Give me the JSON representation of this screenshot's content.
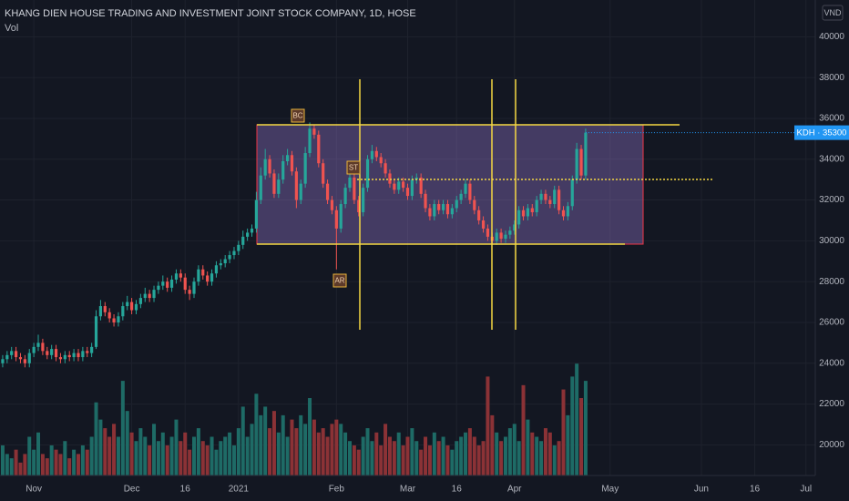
{
  "chart_data": {
    "type": "candlestick",
    "title": "KHANG DIEN HOUSE TRADING AND INVESTMENT JOINT STOCK COMPANY, 1D, HOSE",
    "volume_label": "Vol",
    "currency": "VND",
    "price_label": {
      "value": 35300,
      "label": "KDH · 35300"
    },
    "annotations": [
      {
        "text": "BC"
      },
      {
        "text": "ST"
      },
      {
        "text": "AR"
      }
    ],
    "up_color": "#26a69a",
    "down_color": "#ef5350",
    "volume_up_color": "#1e6b66",
    "volume_down_color": "#8b3236",
    "grid": true,
    "ylim": [
      18500,
      41800
    ],
    "yticks": [
      20000,
      22000,
      24000,
      26000,
      28000,
      30000,
      32000,
      34000,
      36000,
      38000,
      40000
    ],
    "xlim": [
      -0.6,
      182.6
    ],
    "xticks": [
      {
        "value": 7,
        "label": "Nov"
      },
      {
        "value": 29,
        "label": "Dec"
      },
      {
        "value": 41,
        "label": "16"
      },
      {
        "value": 53,
        "label": "2021"
      },
      {
        "value": 75,
        "label": "Feb"
      },
      {
        "value": 91,
        "label": "Mar"
      },
      {
        "value": 102,
        "label": "16"
      },
      {
        "value": 115,
        "label": "Apr"
      },
      {
        "value": 136.5,
        "label": "May"
      },
      {
        "value": 157,
        "label": "Jun"
      },
      {
        "value": 169,
        "label": "16"
      },
      {
        "value": 180.5,
        "label": "Jul"
      }
    ],
    "vlim": [
      0,
      3600000
    ],
    "candles": [
      [
        24000,
        24400,
        23800,
        24200
      ],
      [
        24200,
        24600,
        24000,
        24400
      ],
      [
        24400,
        24800,
        24200,
        24600
      ],
      [
        24600,
        24800,
        24100,
        24300
      ],
      [
        24300,
        24500,
        24000,
        24200
      ],
      [
        24200,
        24400,
        23800,
        24000
      ],
      [
        24000,
        24700,
        23800,
        24500
      ],
      [
        24500,
        25000,
        24300,
        24800
      ],
      [
        24800,
        25400,
        24600,
        25000
      ],
      [
        25000,
        25200,
        24400,
        24600
      ],
      [
        24600,
        24800,
        24200,
        24400
      ],
      [
        24400,
        24900,
        24200,
        24700
      ],
      [
        24700,
        24900,
        24100,
        24300
      ],
      [
        24300,
        24500,
        24000,
        24200
      ],
      [
        24200,
        24600,
        24000,
        24400
      ],
      [
        24400,
        24600,
        24100,
        24300
      ],
      [
        24300,
        24700,
        24100,
        24500
      ],
      [
        24500,
        24700,
        24100,
        24300
      ],
      [
        24300,
        24800,
        24100,
        24600
      ],
      [
        24600,
        24800,
        24300,
        24500
      ],
      [
        24500,
        25000,
        24300,
        24800
      ],
      [
        24800,
        26600,
        24700,
        26300
      ],
      [
        26300,
        27100,
        26100,
        26800
      ],
      [
        26800,
        27000,
        26300,
        26500
      ],
      [
        26500,
        26700,
        26000,
        26200
      ],
      [
        26200,
        26400,
        25800,
        26000
      ],
      [
        26000,
        26500,
        25800,
        26300
      ],
      [
        26300,
        27000,
        26100,
        26800
      ],
      [
        26800,
        27300,
        26600,
        27000
      ],
      [
        27000,
        27200,
        26400,
        26600
      ],
      [
        26600,
        27100,
        26400,
        26900
      ],
      [
        26900,
        27400,
        26700,
        27200
      ],
      [
        27200,
        27700,
        27000,
        27400
      ],
      [
        27400,
        27600,
        27000,
        27200
      ],
      [
        27200,
        27800,
        27000,
        27600
      ],
      [
        27600,
        28000,
        27400,
        27800
      ],
      [
        27800,
        28300,
        27600,
        28000
      ],
      [
        28000,
        28200,
        27500,
        27700
      ],
      [
        27700,
        28300,
        27500,
        28100
      ],
      [
        28100,
        28600,
        27900,
        28400
      ],
      [
        28400,
        28600,
        28000,
        28200
      ],
      [
        28200,
        28400,
        27400,
        27600
      ],
      [
        27600,
        27800,
        27100,
        27400
      ],
      [
        27400,
        28200,
        27200,
        28000
      ],
      [
        28000,
        28800,
        27800,
        28600
      ],
      [
        28600,
        28800,
        28100,
        28300
      ],
      [
        28300,
        28500,
        27800,
        28000
      ],
      [
        28000,
        28600,
        27800,
        28400
      ],
      [
        28400,
        29000,
        28200,
        28800
      ],
      [
        28800,
        29100,
        28600,
        28900
      ],
      [
        28900,
        29300,
        28700,
        29100
      ],
      [
        29100,
        29500,
        28900,
        29300
      ],
      [
        29300,
        29700,
        29100,
        29500
      ],
      [
        29500,
        30000,
        29300,
        29800
      ],
      [
        29800,
        30500,
        29600,
        30200
      ],
      [
        30200,
        30600,
        30000,
        30400
      ],
      [
        30400,
        30800,
        30200,
        30600
      ],
      [
        30600,
        32400,
        30400,
        32000
      ],
      [
        32000,
        33600,
        31800,
        33200
      ],
      [
        33200,
        34500,
        33000,
        34000
      ],
      [
        34000,
        34200,
        33100,
        33300
      ],
      [
        33300,
        33500,
        32100,
        32300
      ],
      [
        32300,
        33300,
        32100,
        33000
      ],
      [
        33000,
        34200,
        32800,
        33900
      ],
      [
        33900,
        34500,
        33700,
        34200
      ],
      [
        34200,
        34400,
        33200,
        33400
      ],
      [
        33400,
        33600,
        31600,
        32000
      ],
      [
        32000,
        33000,
        31800,
        32800
      ],
      [
        32800,
        34600,
        32600,
        34300
      ],
      [
        34300,
        35800,
        34100,
        35500
      ],
      [
        35500,
        35700,
        35000,
        35200
      ],
      [
        35200,
        35400,
        33600,
        33800
      ],
      [
        33800,
        34000,
        32600,
        32800
      ],
      [
        32800,
        33000,
        31800,
        32000
      ],
      [
        32000,
        32200,
        31300,
        31500
      ],
      [
        31500,
        31700,
        28600,
        30600
      ],
      [
        30600,
        32000,
        30400,
        31800
      ],
      [
        31800,
        32800,
        31600,
        32600
      ],
      [
        32600,
        33300,
        32400,
        33100
      ],
      [
        33100,
        33300,
        31800,
        32000
      ],
      [
        32000,
        32200,
        31200,
        31400
      ],
      [
        31400,
        32800,
        31200,
        32600
      ],
      [
        32600,
        34200,
        32400,
        34000
      ],
      [
        34000,
        34700,
        33800,
        34400
      ],
      [
        34400,
        34600,
        33900,
        34100
      ],
      [
        34100,
        34300,
        33600,
        33800
      ],
      [
        33800,
        34000,
        33100,
        33300
      ],
      [
        33300,
        33500,
        32600,
        32800
      ],
      [
        32800,
        33000,
        32300,
        32500
      ],
      [
        32500,
        33100,
        32300,
        32900
      ],
      [
        32900,
        33100,
        32400,
        32600
      ],
      [
        32600,
        32800,
        32000,
        32200
      ],
      [
        32200,
        33200,
        32000,
        33000
      ],
      [
        33000,
        33300,
        32800,
        33100
      ],
      [
        33100,
        33300,
        32100,
        32300
      ],
      [
        32300,
        32500,
        31400,
        31600
      ],
      [
        31600,
        31800,
        31000,
        31200
      ],
      [
        31200,
        32000,
        31000,
        31800
      ],
      [
        31800,
        32000,
        31300,
        31500
      ],
      [
        31500,
        32000,
        31300,
        31800
      ],
      [
        31800,
        32000,
        31100,
        31300
      ],
      [
        31300,
        31800,
        31100,
        31600
      ],
      [
        31600,
        32200,
        31400,
        32000
      ],
      [
        32000,
        32500,
        31800,
        32300
      ],
      [
        32300,
        33000,
        32100,
        32800
      ],
      [
        32800,
        33000,
        31800,
        32000
      ],
      [
        32000,
        32200,
        31300,
        31500
      ],
      [
        31500,
        31700,
        30800,
        31000
      ],
      [
        31000,
        31200,
        30400,
        30600
      ],
      [
        30600,
        30800,
        30000,
        30200
      ],
      [
        30200,
        30400,
        29800,
        30000
      ],
      [
        30000,
        30600,
        29800,
        30400
      ],
      [
        30400,
        30600,
        29900,
        30100
      ],
      [
        30100,
        30500,
        29900,
        30300
      ],
      [
        30300,
        30700,
        30100,
        30500
      ],
      [
        30500,
        31000,
        30300,
        30800
      ],
      [
        30800,
        31700,
        30600,
        31500
      ],
      [
        31500,
        31700,
        31000,
        31200
      ],
      [
        31200,
        31800,
        31000,
        31600
      ],
      [
        31600,
        31800,
        31200,
        31400
      ],
      [
        31400,
        32200,
        31200,
        32000
      ],
      [
        32000,
        32500,
        31800,
        32300
      ],
      [
        32300,
        32500,
        31800,
        32000
      ],
      [
        32000,
        32200,
        31600,
        31800
      ],
      [
        31800,
        32700,
        31600,
        32500
      ],
      [
        32500,
        32700,
        31300,
        31500
      ],
      [
        31500,
        31700,
        31000,
        31200
      ],
      [
        31200,
        31900,
        31000,
        31700
      ],
      [
        31700,
        33200,
        31500,
        33000
      ],
      [
        33000,
        34800,
        32800,
        34500
      ],
      [
        34500,
        34700,
        33000,
        33200
      ],
      [
        33200,
        35500,
        33000,
        35300
      ]
    ],
    "volumes": [
      700000,
      500000,
      400000,
      600000,
      300000,
      500000,
      900000,
      600000,
      1000000,
      500000,
      400000,
      700000,
      600000,
      500000,
      800000,
      400000,
      600000,
      500000,
      700000,
      600000,
      900000,
      1700000,
      1300000,
      1100000,
      900000,
      1200000,
      900000,
      2200000,
      1500000,
      1000000,
      800000,
      1100000,
      900000,
      700000,
      1200000,
      800000,
      1000000,
      700000,
      900000,
      1300000,
      800000,
      1000000,
      600000,
      900000,
      1100000,
      800000,
      700000,
      900000,
      600000,
      800000,
      900000,
      1000000,
      700000,
      1100000,
      1600000,
      900000,
      1200000,
      1900000,
      1400000,
      1600000,
      1100000,
      1500000,
      1000000,
      1400000,
      900000,
      1300000,
      1100000,
      1400000,
      1200000,
      1800000,
      1300000,
      1000000,
      1100000,
      900000,
      1200000,
      1300000,
      1200000,
      1000000,
      800000,
      700000,
      600000,
      900000,
      1100000,
      800000,
      1000000,
      700000,
      1200000,
      900000,
      800000,
      1000000,
      700000,
      900000,
      1100000,
      800000,
      600000,
      900000,
      700000,
      1000000,
      800000,
      900000,
      700000,
      600000,
      800000,
      900000,
      1000000,
      1100000,
      900000,
      700000,
      800000,
      2300000,
      1400000,
      1000000,
      800000,
      900000,
      1100000,
      1200000,
      800000,
      2100000,
      1300000,
      1000000,
      900000,
      800000,
      1100000,
      1000000,
      700000,
      800000,
      2000000,
      1400000,
      2300000,
      2600000,
      1800000,
      2200000
    ]
  }
}
